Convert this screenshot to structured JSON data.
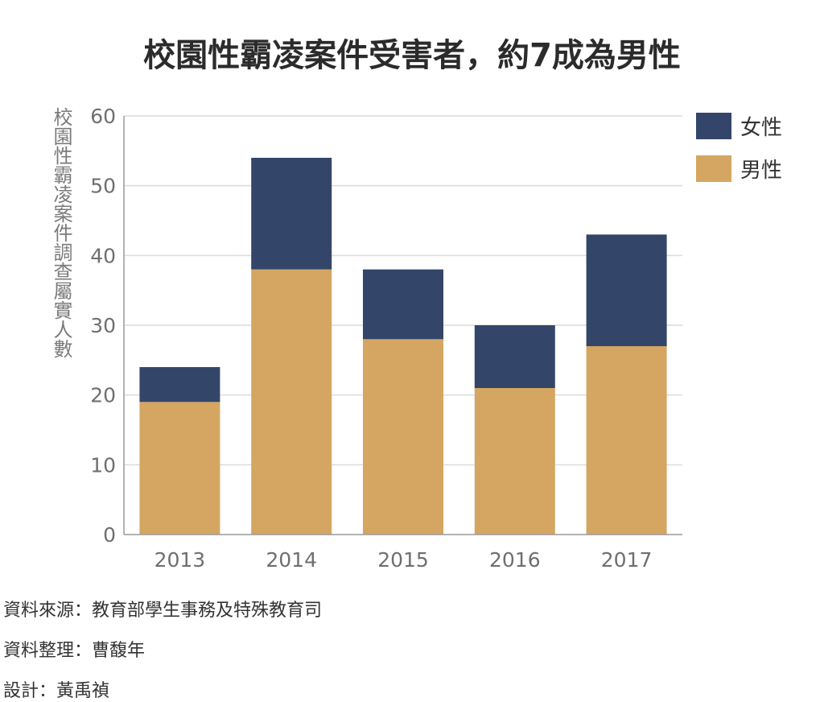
{
  "title": "校園性霸凌案件受害者，約7成為男性",
  "footer": {
    "source": "資料來源：教育部學生事務及特殊教育司",
    "compiler": "資料整理：曹馥年",
    "designer": "設計：黃禹禎"
  },
  "chart_data": {
    "type": "bar",
    "stacked": true,
    "title": "校園性霸凌案件受害者，約7成為男性",
    "xlabel": "",
    "ylabel": "校園性霸凌案件調查屬實人數",
    "categories": [
      "2013",
      "2014",
      "2015",
      "2016",
      "2017"
    ],
    "series": [
      {
        "name": "男性",
        "color": "#d4a662",
        "values": [
          19,
          38,
          28,
          21,
          27
        ]
      },
      {
        "name": "女性",
        "color": "#334669",
        "values": [
          5,
          16,
          10,
          9,
          16
        ]
      }
    ],
    "legend_order": [
      "女性",
      "男性"
    ],
    "ylim": [
      0,
      60
    ],
    "yticks": [
      0,
      10,
      20,
      30,
      40,
      50,
      60
    ],
    "grid": true,
    "legend_position": "top-right"
  }
}
